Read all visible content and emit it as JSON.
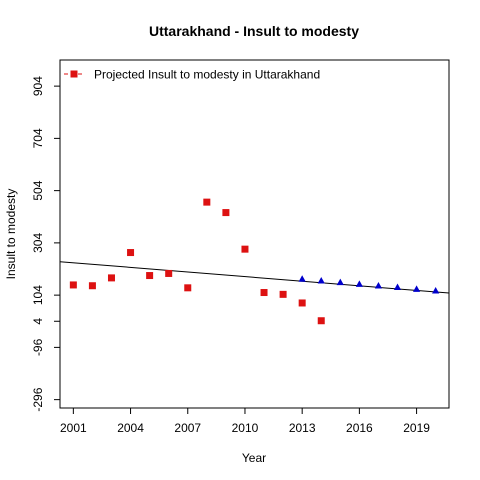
{
  "chart_data": {
    "type": "scatter",
    "title": "Uttarakhand  -  Insult to modesty",
    "xlabel": "Year",
    "ylabel": "Insult to modesty",
    "xlim": [
      2000.3,
      2020.7
    ],
    "ylim": [
      -328,
      1004
    ],
    "x_ticks": [
      2001,
      2004,
      2007,
      2010,
      2013,
      2016,
      2019
    ],
    "y_ticks": [
      -296,
      -96,
      4,
      104,
      304,
      504,
      704,
      904
    ],
    "legend": {
      "label": "Projected  Insult to modesty  in  Uttarakhand",
      "position": "top-left"
    },
    "colors": {
      "observed": "#dd1111",
      "projected": "#0000cc",
      "trend": "#000000"
    },
    "series": [
      {
        "name": "observed",
        "marker": "square",
        "x": [
          2001,
          2002,
          2003,
          2004,
          2005,
          2006,
          2007,
          2008,
          2009,
          2010,
          2011,
          2012,
          2013,
          2014
        ],
        "y": [
          143,
          140,
          170,
          267,
          179,
          187,
          132,
          460,
          420,
          280,
          114,
          107,
          74,
          6
        ]
      },
      {
        "name": "projected",
        "marker": "triangle",
        "x": [
          2013,
          2014,
          2015,
          2016,
          2017,
          2018,
          2019,
          2020
        ],
        "y": [
          165,
          158,
          152,
          145,
          139,
          133,
          126,
          120
        ]
      }
    ],
    "trend_line": {
      "x": [
        2000.3,
        2020.7
      ],
      "y": [
        232,
        112
      ]
    }
  }
}
